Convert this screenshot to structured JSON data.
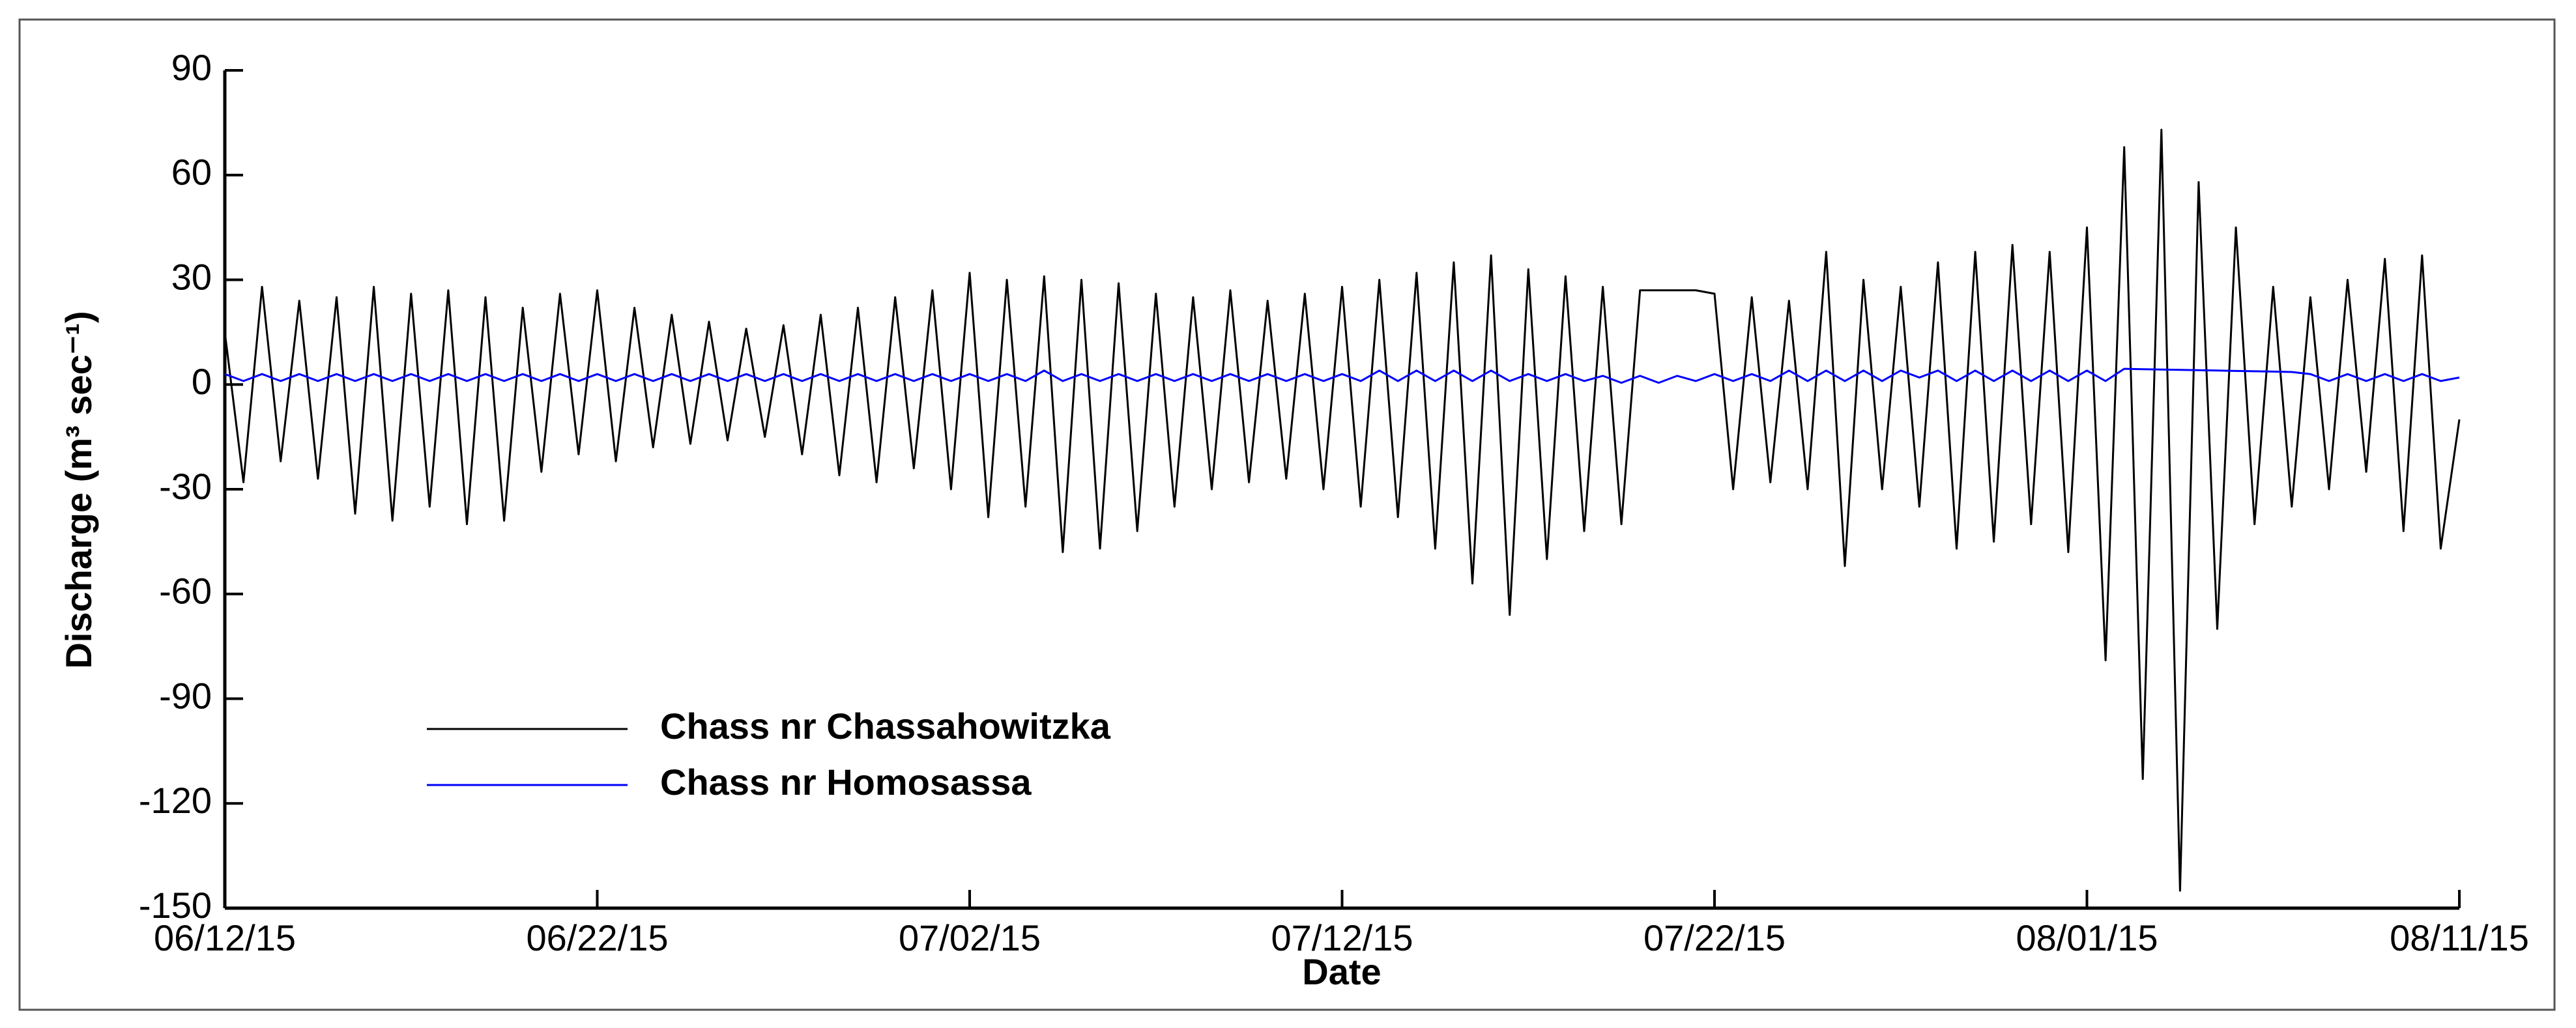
{
  "chart_data": {
    "type": "line",
    "x_title": "Date",
    "y_title": "Discharge (m³ sec⁻¹)",
    "x": [
      "2015-06-12T00:00",
      "2015-06-12T12:00",
      "2015-06-13T00:00",
      "2015-06-13T12:00",
      "2015-06-14T00:00",
      "2015-06-14T12:00",
      "2015-06-15T00:00",
      "2015-06-15T12:00",
      "2015-06-16T00:00",
      "2015-06-16T12:00",
      "2015-06-17T00:00",
      "2015-06-17T12:00",
      "2015-06-18T00:00",
      "2015-06-18T12:00",
      "2015-06-19T00:00",
      "2015-06-19T12:00",
      "2015-06-20T00:00",
      "2015-06-20T12:00",
      "2015-06-21T00:00",
      "2015-06-21T12:00",
      "2015-06-22T00:00",
      "2015-06-22T12:00",
      "2015-06-23T00:00",
      "2015-06-23T12:00",
      "2015-06-24T00:00",
      "2015-06-24T12:00",
      "2015-06-25T00:00",
      "2015-06-25T12:00",
      "2015-06-26T00:00",
      "2015-06-26T12:00",
      "2015-06-27T00:00",
      "2015-06-27T12:00",
      "2015-06-28T00:00",
      "2015-06-28T12:00",
      "2015-06-29T00:00",
      "2015-06-29T12:00",
      "2015-06-30T00:00",
      "2015-06-30T12:00",
      "2015-07-01T00:00",
      "2015-07-01T12:00",
      "2015-07-02T00:00",
      "2015-07-02T12:00",
      "2015-07-03T00:00",
      "2015-07-03T12:00",
      "2015-07-04T00:00",
      "2015-07-04T12:00",
      "2015-07-05T00:00",
      "2015-07-05T12:00",
      "2015-07-06T00:00",
      "2015-07-06T12:00",
      "2015-07-07T00:00",
      "2015-07-07T12:00",
      "2015-07-08T00:00",
      "2015-07-08T12:00",
      "2015-07-09T00:00",
      "2015-07-09T12:00",
      "2015-07-10T00:00",
      "2015-07-10T12:00",
      "2015-07-11T00:00",
      "2015-07-11T12:00",
      "2015-07-12T00:00",
      "2015-07-12T12:00",
      "2015-07-13T00:00",
      "2015-07-13T12:00",
      "2015-07-14T00:00",
      "2015-07-14T12:00",
      "2015-07-15T00:00",
      "2015-07-15T12:00",
      "2015-07-16T00:00",
      "2015-07-16T12:00",
      "2015-07-17T00:00",
      "2015-07-17T12:00",
      "2015-07-18T00:00",
      "2015-07-18T12:00",
      "2015-07-19T00:00",
      "2015-07-19T12:00",
      "2015-07-20T00:00",
      "2015-07-20T12:00",
      "2015-07-21T00:00",
      "2015-07-21T12:00",
      "2015-07-22T00:00",
      "2015-07-22T12:00",
      "2015-07-23T00:00",
      "2015-07-23T12:00",
      "2015-07-24T00:00",
      "2015-07-24T12:00",
      "2015-07-25T00:00",
      "2015-07-25T12:00",
      "2015-07-26T00:00",
      "2015-07-26T12:00",
      "2015-07-27T00:00",
      "2015-07-27T12:00",
      "2015-07-28T00:00",
      "2015-07-28T12:00",
      "2015-07-29T00:00",
      "2015-07-29T12:00",
      "2015-07-30T00:00",
      "2015-07-30T12:00",
      "2015-07-31T00:00",
      "2015-07-31T12:00",
      "2015-08-01T00:00",
      "2015-08-01T12:00",
      "2015-08-02T00:00",
      "2015-08-02T12:00",
      "2015-08-03T00:00",
      "2015-08-03T12:00",
      "2015-08-04T00:00",
      "2015-08-04T12:00",
      "2015-08-05T00:00",
      "2015-08-05T12:00",
      "2015-08-06T00:00",
      "2015-08-06T12:00",
      "2015-08-07T00:00",
      "2015-08-07T12:00",
      "2015-08-08T00:00",
      "2015-08-08T12:00",
      "2015-08-09T00:00",
      "2015-08-09T12:00",
      "2015-08-10T00:00",
      "2015-08-10T12:00",
      "2015-08-11T00:00"
    ],
    "series": [
      {
        "name": "Chass nr Chassahowitzka",
        "color": "#000000",
        "values": [
          15,
          -28,
          28,
          -22,
          24,
          -27,
          25,
          -37,
          28,
          -39,
          26,
          -35,
          27,
          -40,
          25,
          -39,
          22,
          -25,
          26,
          -20,
          27,
          -22,
          22,
          -18,
          20,
          -17,
          18,
          -16,
          16,
          -15,
          17,
          -20,
          20,
          -26,
          22,
          -28,
          25,
          -24,
          27,
          -30,
          32,
          -38,
          30,
          -35,
          31,
          -48,
          30,
          -47,
          29,
          -42,
          26,
          -35,
          25,
          -30,
          27,
          -28,
          24,
          -27,
          26,
          -30,
          28,
          -35,
          30,
          -38,
          32,
          -47,
          35,
          -57,
          37,
          -66,
          33,
          -50,
          31,
          -42,
          28,
          -40,
          27,
          27,
          27,
          27,
          26,
          -30,
          25,
          -28,
          24,
          -30,
          38,
          -52,
          30,
          -30,
          28,
          -35,
          35,
          -47,
          38,
          -45,
          40,
          -40,
          38,
          -48,
          45,
          -79,
          68,
          -113,
          73,
          -145,
          58,
          -70,
          45,
          -40,
          28,
          -35,
          25,
          -30,
          30,
          -25,
          36,
          -42,
          37,
          -47,
          -10
        ]
      },
      {
        "name": "Chass nr Homosassa",
        "color": "#0000ff",
        "values": [
          3,
          1,
          3,
          1,
          3,
          1,
          3,
          1,
          3,
          1,
          3,
          1,
          3,
          1,
          3,
          1,
          3,
          1,
          3,
          1,
          3,
          1,
          3,
          1,
          3,
          1,
          3,
          1,
          3,
          1,
          3,
          1,
          3,
          1,
          3,
          1,
          3,
          1,
          3,
          1,
          3,
          1,
          3,
          1,
          4,
          1,
          3,
          1,
          3,
          1,
          3,
          1,
          3,
          1,
          3,
          1,
          3,
          1,
          3,
          1,
          3,
          1,
          4,
          1,
          4,
          1,
          4,
          1,
          4,
          1,
          3,
          1,
          3,
          1,
          2.5,
          0.5,
          2.5,
          0.5,
          2.5,
          1,
          3,
          1,
          3,
          1,
          4,
          1,
          4,
          1,
          4,
          1,
          4,
          2,
          4,
          1,
          4,
          1,
          4,
          1,
          4,
          1,
          4,
          1,
          4.5,
          4.4,
          4.3,
          4.2,
          4.1,
          4,
          3.9,
          3.8,
          3.7,
          3.6,
          3,
          1,
          3,
          1,
          3,
          1,
          3,
          1,
          2
        ]
      }
    ],
    "xlim": [
      "2015-06-12T00:00",
      "2015-08-11T00:00"
    ],
    "xticks": [
      {
        "value": "2015-06-12T00:00",
        "label": "06/12/15"
      },
      {
        "value": "2015-06-22T00:00",
        "label": "06/22/15"
      },
      {
        "value": "2015-07-02T00:00",
        "label": "07/02/15"
      },
      {
        "value": "2015-07-12T00:00",
        "label": "07/12/15"
      },
      {
        "value": "2015-07-22T00:00",
        "label": "07/22/15"
      },
      {
        "value": "2015-08-01T00:00",
        "label": "08/01/15"
      },
      {
        "value": "2015-08-11T00:00",
        "label": "08/11/15"
      }
    ],
    "ylim": [
      -150,
      90
    ],
    "yticks": [
      -150,
      -120,
      -90,
      -60,
      -30,
      0,
      30,
      60,
      90
    ]
  }
}
